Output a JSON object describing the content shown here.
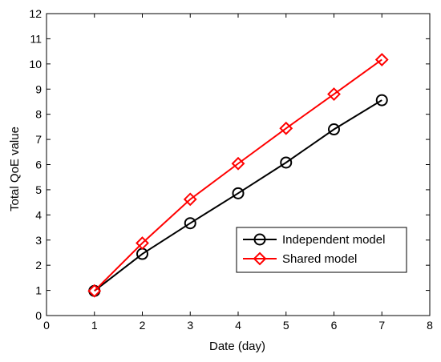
{
  "chart_data": {
    "type": "line",
    "xlabel": "Date (day)",
    "ylabel": "Total QoE value",
    "xlim": [
      0,
      8
    ],
    "ylim": [
      0,
      12
    ],
    "xticks": [
      0,
      1,
      2,
      3,
      4,
      5,
      6,
      7,
      8
    ],
    "yticks": [
      0,
      1,
      2,
      3,
      4,
      5,
      6,
      7,
      8,
      9,
      10,
      11,
      12
    ],
    "grid": false,
    "legend_position": "lower-right",
    "x": [
      1,
      2,
      3,
      4,
      5,
      6,
      7
    ],
    "series": [
      {
        "name": "Independent model",
        "values": [
          0.98,
          2.45,
          3.67,
          4.86,
          6.08,
          7.4,
          8.56
        ],
        "color": "#000000",
        "marker": "circle"
      },
      {
        "name": "Shared model",
        "values": [
          0.98,
          2.88,
          4.62,
          6.04,
          7.44,
          8.8,
          10.17
        ],
        "color": "#ff0000",
        "marker": "diamond"
      }
    ]
  }
}
